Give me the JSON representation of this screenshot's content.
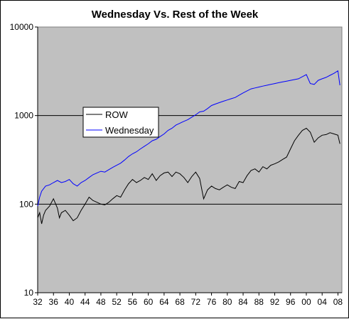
{
  "chart_data": {
    "type": "line",
    "title": "Wednesday Vs. Rest of the Week",
    "y_scale": "log",
    "ylim": [
      10,
      10000
    ],
    "y_ticks": [
      "10",
      "100",
      "1000",
      "10000"
    ],
    "xlim": [
      1932,
      2009
    ],
    "x_ticks": [
      "32",
      "36",
      "40",
      "44",
      "48",
      "52",
      "56",
      "60",
      "64",
      "68",
      "72",
      "76",
      "80",
      "84",
      "88",
      "92",
      "96",
      "00",
      "04",
      "08"
    ],
    "grid": "horizontal gridlines at each decade",
    "legend_position": "upper-left inside plot",
    "plot_background": "#c0c0c0",
    "series": [
      {
        "name": "ROW",
        "color": "#000000",
        "x": [
          1932.0,
          1932.5,
          1933.0,
          1933.5,
          1934.0,
          1935.0,
          1936.0,
          1937.0,
          1937.5,
          1938.0,
          1939.0,
          1940.0,
          1941.0,
          1942.0,
          1943.0,
          1944.0,
          1945.0,
          1946.0,
          1947.0,
          1948.0,
          1949.0,
          1950.0,
          1951.0,
          1952.0,
          1953.0,
          1954.0,
          1955.0,
          1956.0,
          1957.0,
          1958.0,
          1959.0,
          1960.0,
          1961.0,
          1962.0,
          1963.0,
          1964.0,
          1965.0,
          1966.0,
          1967.0,
          1968.0,
          1969.0,
          1970.0,
          1971.0,
          1972.0,
          1973.0,
          1974.0,
          1975.0,
          1976.0,
          1977.0,
          1978.0,
          1979.0,
          1980.0,
          1981.0,
          1982.0,
          1983.0,
          1984.0,
          1985.0,
          1986.0,
          1987.0,
          1988.0,
          1989.0,
          1990.0,
          1991.0,
          1992.0,
          1993.0,
          1994.0,
          1995.0,
          1996.0,
          1997.0,
          1998.0,
          1999.0,
          2000.0,
          2001.0,
          2002.0,
          2003.0,
          2004.0,
          2005.0,
          2006.0,
          2007.0,
          2008.0,
          2008.5
        ],
        "values": [
          70,
          80,
          60,
          75,
          85,
          95,
          115,
          90,
          70,
          80,
          85,
          75,
          65,
          70,
          85,
          100,
          120,
          110,
          105,
          100,
          98,
          105,
          115,
          125,
          120,
          145,
          170,
          190,
          175,
          185,
          200,
          190,
          220,
          185,
          210,
          225,
          230,
          205,
          230,
          220,
          200,
          175,
          205,
          230,
          195,
          115,
          145,
          160,
          150,
          145,
          155,
          165,
          155,
          150,
          180,
          175,
          210,
          240,
          250,
          230,
          265,
          250,
          275,
          285,
          300,
          320,
          340,
          420,
          520,
          600,
          680,
          720,
          650,
          500,
          560,
          600,
          610,
          640,
          620,
          600,
          480
        ]
      },
      {
        "name": "Wednesday",
        "color": "#0000ff",
        "x": [
          1932.0,
          1932.5,
          1933.0,
          1934.0,
          1935.0,
          1936.0,
          1937.0,
          1938.0,
          1939.0,
          1940.0,
          1941.0,
          1942.0,
          1943.0,
          1944.0,
          1945.0,
          1946.0,
          1947.0,
          1948.0,
          1949.0,
          1950.0,
          1951.0,
          1952.0,
          1953.0,
          1954.0,
          1955.0,
          1956.0,
          1957.0,
          1958.0,
          1959.0,
          1960.0,
          1961.0,
          1962.0,
          1963.0,
          1964.0,
          1965.0,
          1966.0,
          1967.0,
          1968.0,
          1969.0,
          1970.0,
          1971.0,
          1972.0,
          1973.0,
          1974.0,
          1975.0,
          1976.0,
          1977.0,
          1978.0,
          1979.0,
          1980.0,
          1981.0,
          1982.0,
          1983.0,
          1984.0,
          1985.0,
          1986.0,
          1987.0,
          1988.0,
          1989.0,
          1990.0,
          1991.0,
          1992.0,
          1993.0,
          1994.0,
          1995.0,
          1996.0,
          1997.0,
          1998.0,
          1999.0,
          2000.0,
          2001.0,
          2002.0,
          2003.0,
          2004.0,
          2005.0,
          2006.0,
          2007.0,
          2008.0,
          2008.5
        ],
        "values": [
          95,
          120,
          140,
          160,
          165,
          175,
          185,
          175,
          180,
          190,
          170,
          160,
          175,
          185,
          200,
          215,
          225,
          235,
          230,
          245,
          260,
          275,
          290,
          315,
          345,
          370,
          390,
          420,
          450,
          480,
          520,
          540,
          580,
          620,
          680,
          720,
          780,
          820,
          860,
          900,
          960,
          1020,
          1100,
          1120,
          1200,
          1300,
          1350,
          1400,
          1450,
          1500,
          1550,
          1600,
          1700,
          1800,
          1900,
          2000,
          2050,
          2100,
          2150,
          2200,
          2250,
          2300,
          2350,
          2400,
          2450,
          2500,
          2550,
          2600,
          2750,
          2900,
          2300,
          2250,
          2500,
          2600,
          2700,
          2850,
          3000,
          3200,
          2200
        ]
      }
    ]
  }
}
